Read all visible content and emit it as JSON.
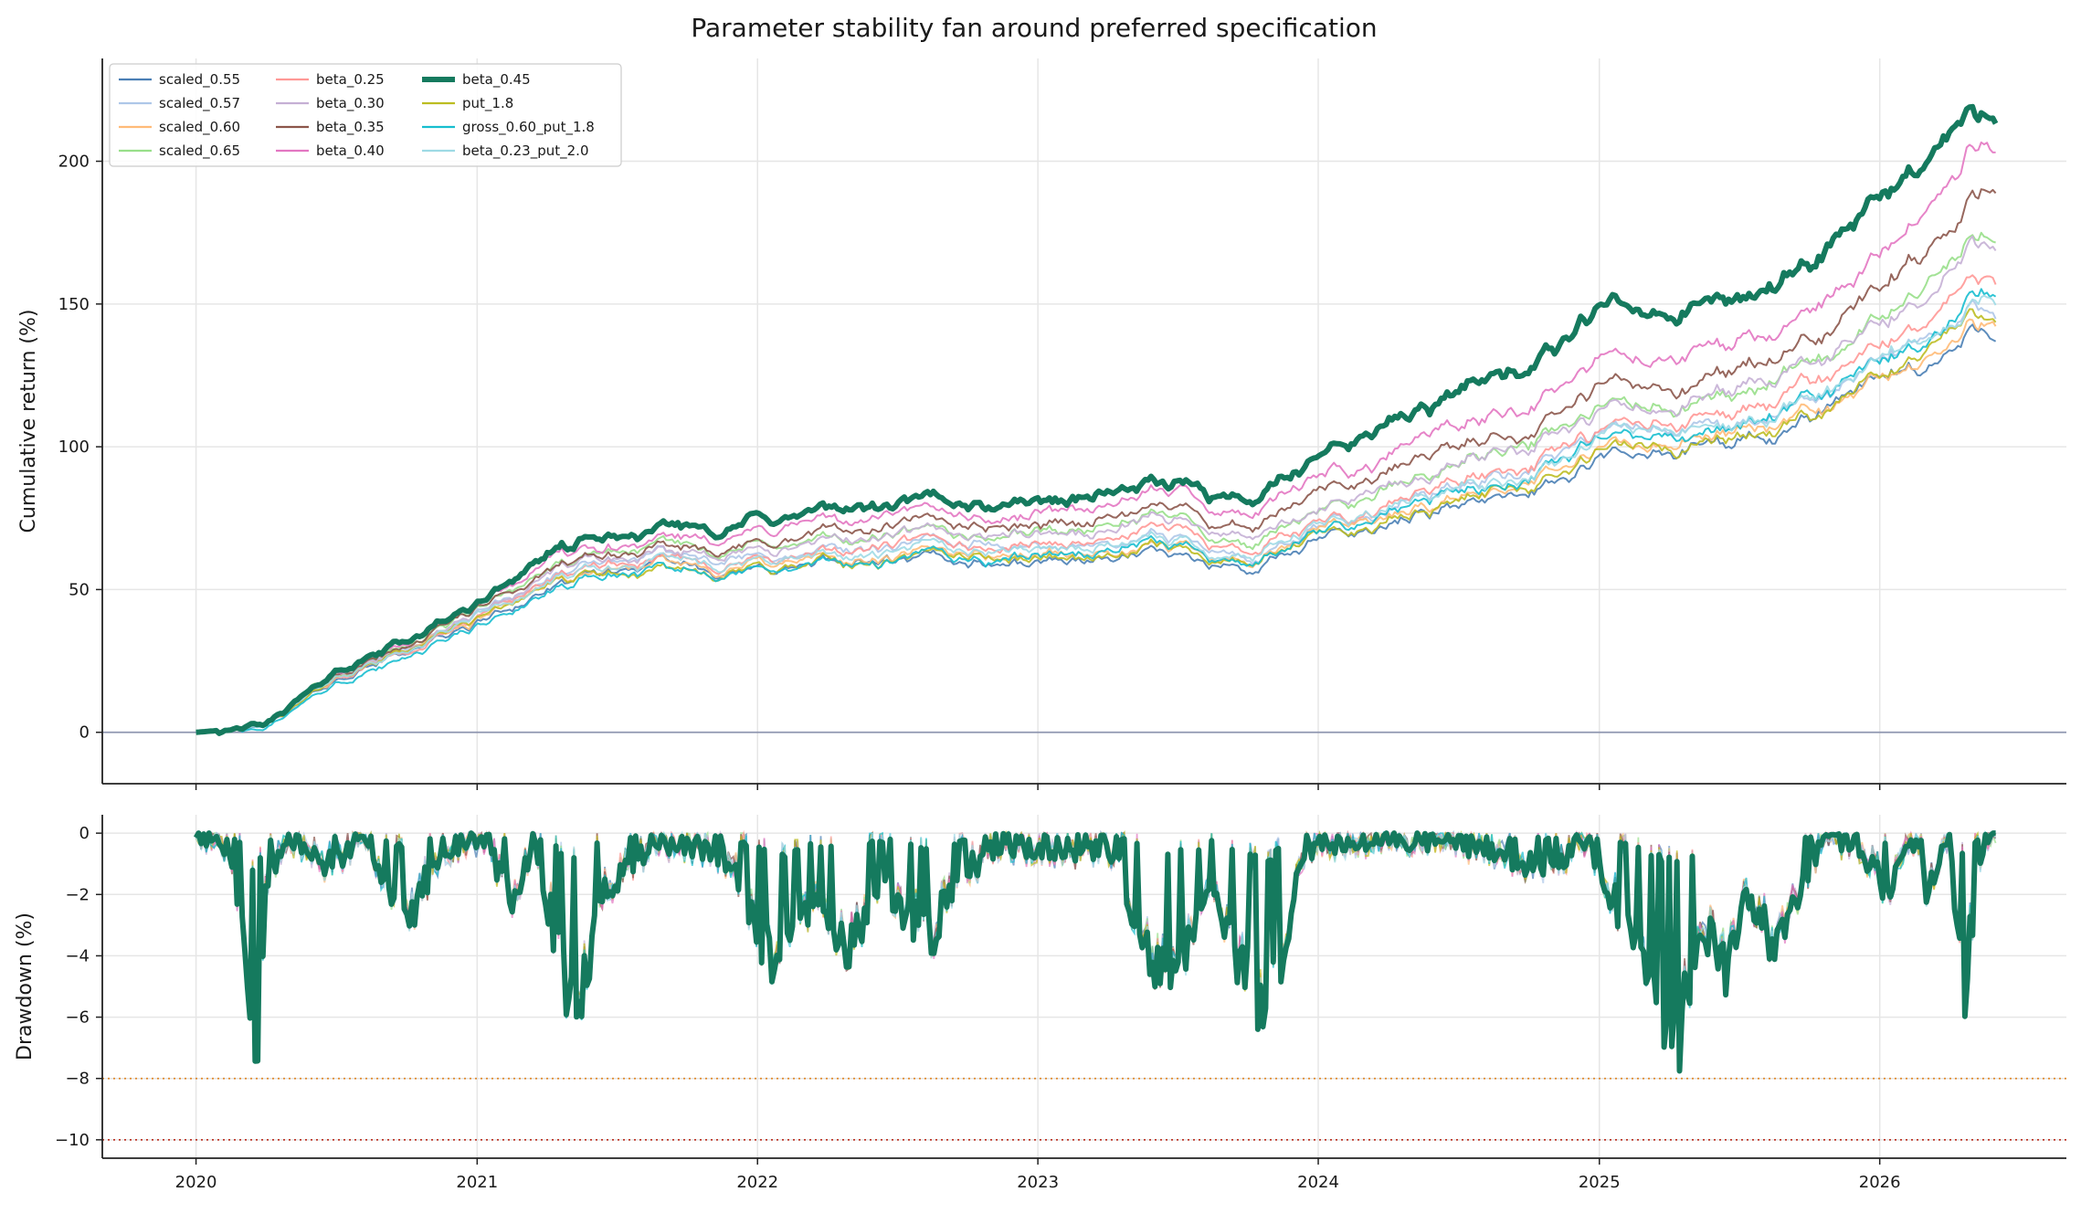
{
  "title": "Parameter stability fan around preferred specification",
  "chart_data": [
    {
      "type": "line",
      "id": "cumulative",
      "ylabel": "Cumulative return (%)",
      "ylim": [
        -18,
        236
      ],
      "yticks": [
        0,
        50,
        100,
        150,
        200
      ],
      "xlim": [
        "2019-09-01",
        "2026-09-01"
      ],
      "xticks": [
        "2020",
        "2021",
        "2022",
        "2023",
        "2024",
        "2025",
        "2026"
      ],
      "grid": true,
      "reference_line": 0,
      "legend": "top-left",
      "anchor_dates": [
        "2020-01-01",
        "2020-04-01",
        "2020-07-01",
        "2020-10-01",
        "2021-01-01",
        "2021-04-01",
        "2021-07-01",
        "2022-01-01",
        "2022-07-01",
        "2023-01-01",
        "2023-07-01",
        "2023-10-15",
        "2024-01-01",
        "2024-07-01",
        "2025-01-01",
        "2025-04-01",
        "2025-10-01",
        "2026-01-01",
        "2026-06-01"
      ],
      "preferred_series": "beta_0.45",
      "series": [
        {
          "name": "scaled_0.55",
          "color": "#4a7fb5",
          "width": 2,
          "values": [
            0,
            2,
            18,
            28,
            38,
            51,
            55,
            57,
            58,
            60,
            62,
            58,
            67,
            80,
            94,
            97,
            107,
            120,
            142
          ]
        },
        {
          "name": "scaled_0.57",
          "color": "#aec7e8",
          "width": 2,
          "values": [
            0,
            2,
            19,
            30,
            41,
            55,
            58,
            62,
            63,
            65,
            67,
            62,
            71,
            86,
            101,
            104,
            114,
            128,
            151
          ]
        },
        {
          "name": "scaled_0.60",
          "color": "#ffbb78",
          "width": 2,
          "values": [
            0,
            2,
            19,
            29,
            39,
            52,
            56,
            58,
            60,
            62,
            64,
            60,
            68,
            82,
            96,
            99,
            109,
            122,
            146
          ]
        },
        {
          "name": "scaled_0.65",
          "color": "#98df8a",
          "width": 2,
          "values": [
            0,
            2,
            20,
            31,
            42,
            57,
            61,
            65,
            67,
            70,
            73,
            67,
            77,
            95,
            111,
            113,
            126,
            142,
            180
          ]
        },
        {
          "name": "beta_0.25",
          "color": "#ff9896",
          "width": 2,
          "values": [
            0,
            2,
            19,
            29,
            40,
            54,
            58,
            61,
            64,
            66,
            69,
            64,
            72,
            88,
            104,
            107,
            117,
            132,
            163
          ]
        },
        {
          "name": "beta_0.30",
          "color": "#c5b0d5",
          "width": 2,
          "values": [
            0,
            2,
            19,
            30,
            41,
            56,
            60,
            64,
            67,
            70,
            73,
            68,
            77,
            93,
            110,
            113,
            124,
            140,
            177
          ]
        },
        {
          "name": "beta_0.35",
          "color": "#8c564b",
          "width": 2,
          "values": [
            0,
            2,
            20,
            31,
            43,
            58,
            62,
            67,
            71,
            74,
            77,
            72,
            82,
            100,
            118,
            121,
            133,
            151,
            192
          ]
        },
        {
          "name": "beta_0.40",
          "color": "#e377c2",
          "width": 2,
          "values": [
            0,
            2,
            20,
            32,
            44,
            60,
            64,
            70,
            74,
            78,
            82,
            77,
            88,
            108,
            128,
            131,
            144,
            164,
            208
          ]
        },
        {
          "name": "beta_0.45",
          "color": "#157a5e",
          "width": 6,
          "values": [
            0,
            2,
            21,
            33,
            45,
            63,
            67,
            74,
            78,
            82,
            87,
            82,
            95,
            118,
            142,
            146,
            158,
            185,
            225
          ]
        },
        {
          "name": "put_1.8",
          "color": "#bcbd22",
          "width": 2,
          "values": [
            0,
            2,
            19,
            29,
            39,
            52,
            55,
            57,
            59,
            61,
            63,
            59,
            67,
            81,
            95,
            98,
            108,
            121,
            147
          ]
        },
        {
          "name": "gross_0.60_put_1.8",
          "color": "#17becf",
          "width": 2,
          "values": [
            0,
            1,
            17,
            27,
            37,
            50,
            54,
            57,
            59,
            62,
            64,
            60,
            69,
            84,
            99,
            102,
            112,
            126,
            154
          ]
        },
        {
          "name": "beta_0.23_put_2.0",
          "color": "#9edae5",
          "width": 2,
          "values": [
            0,
            2,
            19,
            29,
            40,
            53,
            57,
            60,
            62,
            64,
            66,
            62,
            70,
            85,
            100,
            103,
            113,
            127,
            156
          ]
        }
      ]
    },
    {
      "type": "line",
      "id": "drawdown",
      "ylabel": "Drawdown (%)",
      "ylim": [
        -10.6,
        0.6
      ],
      "yticks": [
        0,
        -2,
        -4,
        -6,
        -8,
        -10
      ],
      "xlim": [
        "2019-09-01",
        "2026-09-01"
      ],
      "xticks": [
        "2020",
        "2021",
        "2022",
        "2023",
        "2024",
        "2025",
        "2026"
      ],
      "grid": true,
      "threshold_lines": [
        {
          "value": -8,
          "color": "#e08a2e"
        },
        {
          "value": -10,
          "color": "#c0392b"
        }
      ],
      "series_name": "beta_0.45",
      "dates": [
        "2020-01-01",
        "2020-02-15",
        "2020-03-05",
        "2020-03-18",
        "2020-04-01",
        "2020-05-01",
        "2020-06-15",
        "2020-08-15",
        "2020-09-25",
        "2020-11-15",
        "2021-01-15",
        "2021-02-15",
        "2021-03-15",
        "2021-05-10",
        "2021-06-15",
        "2021-08-15",
        "2021-10-15",
        "2021-12-01",
        "2022-01-25",
        "2022-03-15",
        "2022-05-01",
        "2022-06-15",
        "2022-08-10",
        "2022-09-30",
        "2022-11-15",
        "2023-01-15",
        "2023-03-15",
        "2023-04-15",
        "2023-06-01",
        "2023-07-15",
        "2023-08-15",
        "2023-10-25",
        "2023-12-15",
        "2024-03-15",
        "2024-06-15",
        "2024-08-05",
        "2024-10-15",
        "2024-12-15",
        "2025-02-01",
        "2025-03-15",
        "2025-04-08",
        "2025-05-15",
        "2025-06-15",
        "2025-07-15",
        "2025-08-15",
        "2025-10-15",
        "2025-12-01",
        "2026-01-15",
        "2026-02-15",
        "2026-03-01",
        "2026-04-01",
        "2026-04-20",
        "2026-05-15",
        "2026-06-01"
      ],
      "values": [
        0,
        -0.5,
        -3.5,
        -8.8,
        -1.5,
        -0.2,
        -1.0,
        -0.3,
        -3.2,
        -0.5,
        -0.2,
        -2.5,
        -0.3,
        -6.2,
        -1.8,
        -0.4,
        -0.5,
        -1.0,
        -4.8,
        -2.5,
        -3.6,
        -1.6,
        -3.5,
        -1.2,
        -0.4,
        -0.5,
        -0.6,
        -0.8,
        -4.8,
        -3.5,
        -2.2,
        -6.0,
        -0.5,
        -0.2,
        -0.3,
        -0.6,
        -1.2,
        -0.3,
        -2.8,
        -4.5,
        -7.2,
        -3.2,
        -4.5,
        -2.0,
        -3.5,
        -0.4,
        -0.3,
        -2.0,
        -0.2,
        -1.8,
        -0.3,
        -5.2,
        -0.4,
        0
      ]
    }
  ]
}
